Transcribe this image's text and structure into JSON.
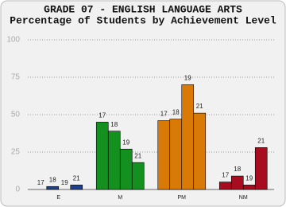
{
  "chart_data": {
    "type": "bar",
    "title": "GRADE 07 - ENGLISH LANGUAGE ARTS",
    "subtitle": "Percentage of Students by Achievement Level",
    "categories": [
      "E",
      "M",
      "PM",
      "NM"
    ],
    "category_colors": [
      "#1f3f8c",
      "#13901e",
      "#d97a06",
      "#a80d1f"
    ],
    "series": [
      {
        "name": "17",
        "values": [
          0,
          45,
          46,
          5
        ]
      },
      {
        "name": "18",
        "values": [
          2,
          39,
          47,
          9
        ]
      },
      {
        "name": "19",
        "values": [
          0,
          27,
          70,
          3
        ]
      },
      {
        "name": "21",
        "values": [
          3,
          18,
          51,
          28
        ]
      }
    ],
    "ylim": [
      0,
      100
    ],
    "yticks": [
      0,
      25,
      50,
      75,
      100
    ],
    "grid": true
  }
}
